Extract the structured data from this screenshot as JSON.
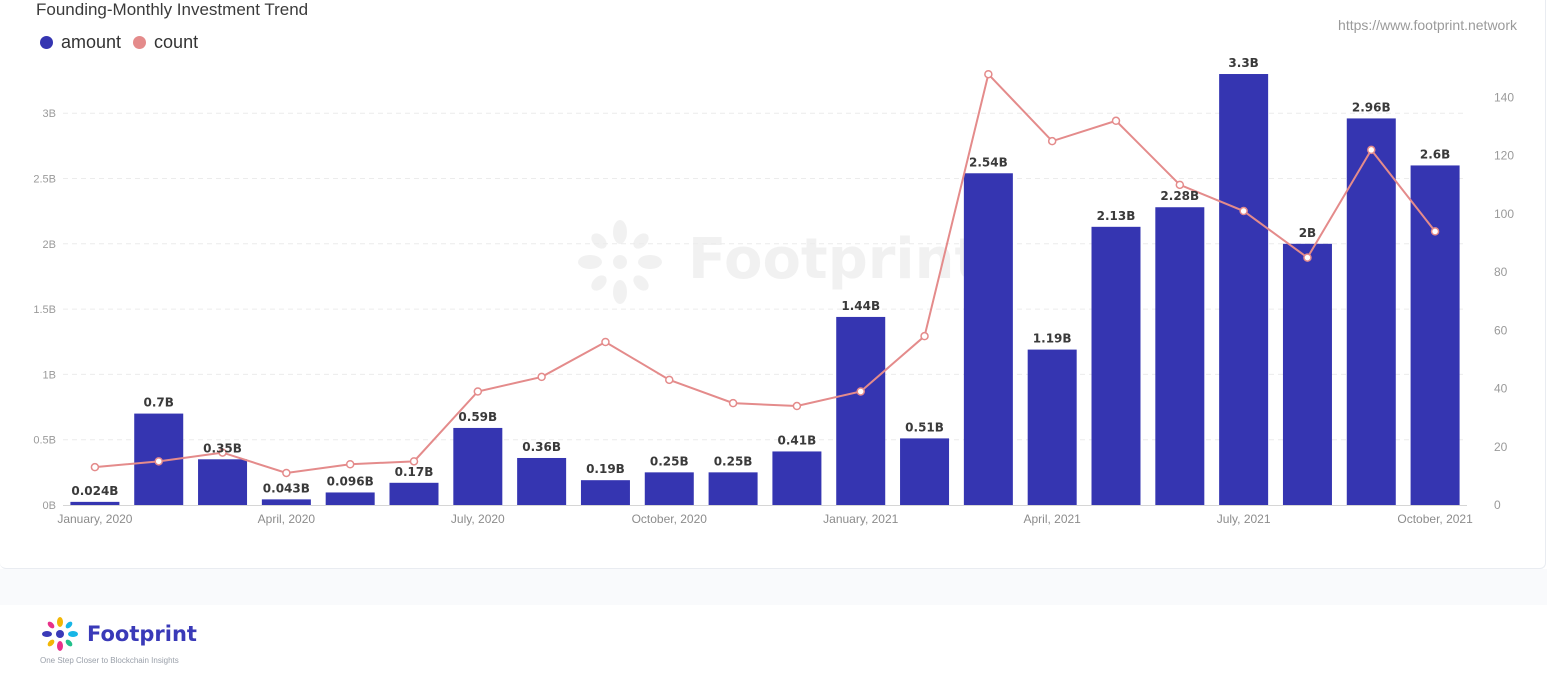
{
  "title": "Founding-Monthly Investment Trend",
  "source_url": "https://www.footprint.network",
  "legend": [
    {
      "label": "amount",
      "color": "#3535b1"
    },
    {
      "label": "count",
      "color": "#e48b8b"
    }
  ],
  "watermark": "Footprint",
  "footer": {
    "brand": "Footprint",
    "tagline": "One Step Closer to Blockchain Insights"
  },
  "chart_data": {
    "type": "bar",
    "categories": [
      "2020-01",
      "2020-02",
      "2020-03",
      "2020-04",
      "2020-05",
      "2020-06",
      "2020-07",
      "2020-08",
      "2020-09",
      "2020-10",
      "2020-11",
      "2020-12",
      "2021-01",
      "2021-02",
      "2021-03",
      "2021-04",
      "2021-05",
      "2021-06",
      "2021-07",
      "2021-08",
      "2021-09",
      "2021-10"
    ],
    "x_tick_labels": [
      {
        "index": 0,
        "label": "January, 2020"
      },
      {
        "index": 3,
        "label": "April, 2020"
      },
      {
        "index": 6,
        "label": "July, 2020"
      },
      {
        "index": 9,
        "label": "October, 2020"
      },
      {
        "index": 12,
        "label": "January, 2021"
      },
      {
        "index": 15,
        "label": "April, 2021"
      },
      {
        "index": 18,
        "label": "July, 2021"
      },
      {
        "index": 21,
        "label": "October, 2021"
      }
    ],
    "series": [
      {
        "name": "amount",
        "type": "bar",
        "axis": "left",
        "color": "#3535b1",
        "values": [
          0.024,
          0.7,
          0.35,
          0.043,
          0.096,
          0.17,
          0.59,
          0.36,
          0.19,
          0.25,
          0.25,
          0.41,
          1.44,
          0.51,
          2.54,
          1.19,
          2.13,
          2.28,
          3.3,
          2.0,
          2.96,
          2.6
        ],
        "labels": [
          "0.024B",
          "0.7B",
          "0.35B",
          "0.043B",
          "0.096B",
          "0.17B",
          "0.59B",
          "0.36B",
          "0.19B",
          "0.25B",
          "0.25B",
          "0.41B",
          "1.44B",
          "0.51B",
          "2.54B",
          "1.19B",
          "2.13B",
          "2.28B",
          "3.3B",
          "2B",
          "2.96B",
          "2.6B"
        ]
      },
      {
        "name": "count",
        "type": "line",
        "axis": "right",
        "color": "#e48b8b",
        "values": [
          13,
          15,
          18,
          11,
          14,
          15,
          39,
          44,
          56,
          43,
          35,
          34,
          39,
          58,
          148,
          125,
          132,
          110,
          101,
          85,
          122,
          94
        ]
      }
    ],
    "y_left": {
      "ylim": [
        0,
        3.5
      ],
      "ticks": [
        0,
        0.5,
        1,
        1.5,
        2,
        2.5,
        3
      ],
      "tick_labels": [
        "0B",
        "0.5B",
        "1B",
        "1.5B",
        "2B",
        "2.5B",
        "3B"
      ]
    },
    "y_right": {
      "ylim": [
        0,
        150
      ],
      "ticks": [
        0,
        20,
        40,
        60,
        80,
        100,
        120,
        140
      ],
      "tick_labels": [
        "0",
        "20",
        "40",
        "60",
        "80",
        "100",
        "120",
        "140"
      ]
    },
    "grid": true,
    "legend_position": "top-left"
  }
}
